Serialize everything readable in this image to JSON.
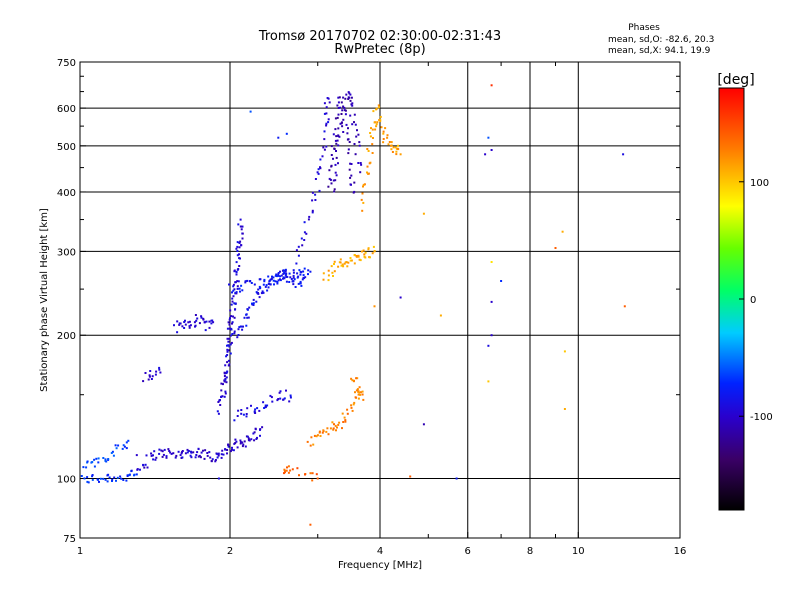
{
  "chart_data": {
    "type": "scatter",
    "title": "Tromsø 20170702 02:30:00-02:31:43",
    "subtitle": "RwPretec (8p)",
    "xlabel": "Frequency [MHz]",
    "ylabel": "Stationary phase Virtual Height [km]",
    "x_scale": "log",
    "y_scale": "log",
    "xlim": [
      1,
      16
    ],
    "ylim": [
      75,
      750
    ],
    "x_ticks": [
      1,
      2,
      4,
      6,
      8,
      10,
      16
    ],
    "x_ticks_minor": [
      3,
      5,
      7,
      9
    ],
    "y_ticks": [
      75,
      100,
      200,
      300,
      400,
      500,
      600,
      750
    ],
    "y_ticks_minor": [
      150,
      250,
      350,
      450,
      550,
      650,
      700
    ],
    "grid": true,
    "legend": {
      "heading": "Phases",
      "lines": [
        "mean, sd,O: -82.6, 20.3",
        "mean, sd,X:  94.1, 19.9"
      ]
    },
    "colorbar": {
      "label": "[deg]",
      "range": [
        -180,
        180
      ],
      "ticks": [
        100,
        0,
        -100
      ]
    },
    "trace_segments": [
      {
        "phase": -70,
        "points": [
          [
            1.0,
            99
          ],
          [
            1.05,
            100
          ],
          [
            1.1,
            100
          ],
          [
            1.15,
            101
          ],
          [
            1.2,
            100
          ],
          [
            1.25,
            101
          ],
          [
            1.3,
            102
          ]
        ]
      },
      {
        "phase": -65,
        "points": [
          [
            1.0,
            106
          ],
          [
            1.05,
            107
          ],
          [
            1.1,
            110
          ],
          [
            1.15,
            112
          ],
          [
            1.2,
            116
          ],
          [
            1.25,
            120
          ]
        ]
      },
      {
        "phase": -100,
        "points": [
          [
            1.3,
            104
          ],
          [
            1.35,
            108
          ],
          [
            1.4,
            112
          ],
          [
            1.45,
            113
          ],
          [
            1.5,
            113
          ],
          [
            1.55,
            112
          ],
          [
            1.6,
            113
          ],
          [
            1.65,
            113
          ],
          [
            1.7,
            114
          ],
          [
            1.75,
            113
          ],
          [
            1.8,
            112
          ],
          [
            1.85,
            111
          ],
          [
            1.9,
            112
          ],
          [
            1.95,
            113
          ],
          [
            2.0,
            116
          ],
          [
            2.05,
            117
          ],
          [
            2.1,
            119
          ],
          [
            2.15,
            120
          ],
          [
            2.2,
            121
          ],
          [
            2.25,
            124
          ],
          [
            2.3,
            127
          ]
        ]
      },
      {
        "phase": -100,
        "points": [
          [
            1.35,
            163
          ],
          [
            1.4,
            165
          ],
          [
            1.45,
            167
          ]
        ]
      },
      {
        "phase": -100,
        "points": [
          [
            1.55,
            208
          ],
          [
            1.6,
            210
          ],
          [
            1.65,
            212
          ],
          [
            1.7,
            214
          ],
          [
            1.75,
            218
          ],
          [
            1.8,
            210
          ],
          [
            1.85,
            213
          ]
        ]
      },
      {
        "phase": -95,
        "points": [
          [
            1.9,
            140
          ],
          [
            1.92,
            147
          ],
          [
            1.94,
            153
          ],
          [
            1.95,
            160
          ],
          [
            1.97,
            167
          ],
          [
            1.98,
            175
          ],
          [
            1.99,
            184
          ],
          [
            2.0,
            193
          ],
          [
            2.0,
            201
          ],
          [
            2.01,
            210
          ],
          [
            2.02,
            218
          ],
          [
            2.03,
            228
          ],
          [
            2.04,
            240
          ],
          [
            2.05,
            252
          ],
          [
            2.06,
            266
          ],
          [
            2.07,
            280
          ],
          [
            2.08,
            295
          ],
          [
            2.09,
            310
          ],
          [
            2.1,
            328
          ],
          [
            2.1,
            350
          ]
        ]
      },
      {
        "phase": -85,
        "points": [
          [
            2.05,
            200
          ],
          [
            2.1,
            205
          ],
          [
            2.15,
            215
          ],
          [
            2.2,
            228
          ],
          [
            2.25,
            238
          ],
          [
            2.3,
            245
          ],
          [
            2.35,
            252
          ],
          [
            2.4,
            258
          ],
          [
            2.45,
            262
          ],
          [
            2.5,
            266
          ],
          [
            2.55,
            268
          ],
          [
            2.6,
            270
          ],
          [
            2.65,
            265
          ],
          [
            2.7,
            260
          ],
          [
            2.75,
            258
          ],
          [
            2.8,
            262
          ]
        ]
      },
      {
        "phase": -80,
        "points": [
          [
            2.0,
            250
          ],
          [
            2.1,
            252
          ],
          [
            2.2,
            255
          ],
          [
            2.3,
            258
          ],
          [
            2.4,
            262
          ],
          [
            2.5,
            263
          ],
          [
            2.6,
            265
          ],
          [
            2.7,
            268
          ],
          [
            2.8,
            270
          ],
          [
            2.9,
            272
          ]
        ]
      },
      {
        "phase": -90,
        "points": [
          [
            2.05,
            135
          ],
          [
            2.15,
            138
          ],
          [
            2.25,
            140
          ],
          [
            2.35,
            143
          ],
          [
            2.45,
            147
          ],
          [
            2.55,
            150
          ],
          [
            2.65,
            148
          ]
        ]
      },
      {
        "phase": -95,
        "points": [
          [
            2.7,
            290
          ],
          [
            2.8,
            320
          ],
          [
            2.9,
            360
          ],
          [
            3.0,
            410
          ],
          [
            3.05,
            460
          ],
          [
            3.1,
            520
          ],
          [
            3.12,
            580
          ],
          [
            3.14,
            630
          ]
        ]
      },
      {
        "phase": -110,
        "points": [
          [
            3.2,
            400
          ],
          [
            3.25,
            450
          ],
          [
            3.3,
            500
          ],
          [
            3.35,
            550
          ],
          [
            3.4,
            600
          ],
          [
            3.45,
            640
          ],
          [
            3.5,
            620
          ],
          [
            3.55,
            560
          ],
          [
            3.6,
            500
          ],
          [
            3.65,
            440
          ]
        ]
      },
      {
        "phase": -110,
        "points": [
          [
            3.15,
            420
          ],
          [
            3.2,
            470
          ],
          [
            3.25,
            520
          ],
          [
            3.3,
            580
          ],
          [
            3.35,
            640
          ],
          [
            3.4,
            560
          ],
          [
            3.45,
            500
          ],
          [
            3.5,
            440
          ],
          [
            3.55,
            400
          ]
        ]
      },
      {
        "phase": 110,
        "points": [
          [
            3.1,
            265
          ],
          [
            3.2,
            272
          ],
          [
            3.3,
            280
          ],
          [
            3.4,
            285
          ],
          [
            3.5,
            288
          ],
          [
            3.6,
            290
          ],
          [
            3.7,
            295
          ],
          [
            3.8,
            298
          ],
          [
            3.9,
            300
          ]
        ]
      },
      {
        "phase": 115,
        "points": [
          [
            3.7,
            370
          ],
          [
            3.75,
            420
          ],
          [
            3.8,
            470
          ],
          [
            3.85,
            520
          ],
          [
            3.9,
            560
          ],
          [
            3.95,
            600
          ],
          [
            4.0,
            560
          ],
          [
            4.1,
            520
          ],
          [
            4.2,
            500
          ],
          [
            4.3,
            490
          ],
          [
            4.4,
            480
          ]
        ]
      },
      {
        "phase": 125,
        "points": [
          [
            2.9,
            118
          ],
          [
            3.0,
            122
          ],
          [
            3.1,
            125
          ],
          [
            3.2,
            130
          ],
          [
            3.3,
            128
          ],
          [
            3.4,
            135
          ],
          [
            3.5,
            140
          ],
          [
            3.6,
            150
          ],
          [
            3.7,
            148
          ],
          [
            3.6,
            158
          ],
          [
            3.5,
            162
          ]
        ]
      },
      {
        "phase": 140,
        "points": [
          [
            2.55,
            103
          ],
          [
            2.6,
            104
          ],
          [
            2.8,
            102
          ],
          [
            3.0,
            100
          ]
        ]
      }
    ],
    "isolated_points": [
      {
        "f": 6.7,
        "h": 670,
        "phase": 160
      },
      {
        "f": 6.6,
        "h": 520,
        "phase": -60
      },
      {
        "f": 6.5,
        "h": 480,
        "phase": -100
      },
      {
        "f": 6.7,
        "h": 490,
        "phase": -100
      },
      {
        "f": 6.7,
        "h": 285,
        "phase": 90
      },
      {
        "f": 7.0,
        "h": 260,
        "phase": -70
      },
      {
        "f": 6.7,
        "h": 235,
        "phase": -100
      },
      {
        "f": 6.7,
        "h": 200,
        "phase": -100
      },
      {
        "f": 6.6,
        "h": 190,
        "phase": -90
      },
      {
        "f": 6.6,
        "h": 160,
        "phase": 100
      },
      {
        "f": 9.3,
        "h": 330,
        "phase": 110
      },
      {
        "f": 9.0,
        "h": 305,
        "phase": 140
      },
      {
        "f": 12.4,
        "h": 230,
        "phase": 140
      },
      {
        "f": 12.3,
        "h": 480,
        "phase": -90
      },
      {
        "f": 9.4,
        "h": 140,
        "phase": 110
      },
      {
        "f": 9.4,
        "h": 185,
        "phase": 100
      },
      {
        "f": 5.3,
        "h": 220,
        "phase": 110
      },
      {
        "f": 4.9,
        "h": 360,
        "phase": 110
      },
      {
        "f": 4.9,
        "h": 130,
        "phase": -110
      },
      {
        "f": 4.4,
        "h": 240,
        "phase": -100
      },
      {
        "f": 5.7,
        "h": 100,
        "phase": -80
      },
      {
        "f": 3.9,
        "h": 230,
        "phase": 120
      },
      {
        "f": 2.9,
        "h": 80,
        "phase": 140
      },
      {
        "f": 4.6,
        "h": 101,
        "phase": 140
      },
      {
        "f": 2.2,
        "h": 590,
        "phase": -60
      },
      {
        "f": 2.5,
        "h": 520,
        "phase": -80
      },
      {
        "f": 2.6,
        "h": 530,
        "phase": -70
      },
      {
        "f": 1.3,
        "h": 112,
        "phase": -100
      },
      {
        "f": 1.9,
        "h": 100,
        "phase": -90
      }
    ]
  }
}
